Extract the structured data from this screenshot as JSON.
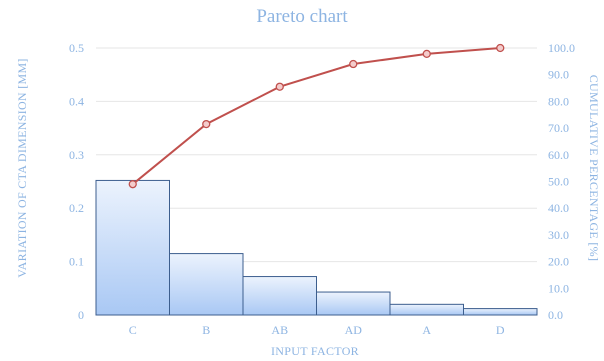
{
  "chart_data": {
    "type": "bar",
    "title": "Pareto chart",
    "xlabel": "INPUT FACTOR",
    "ylabel": "VARIATION OF CTA DIMENSION [MM]",
    "y2label": "CUMULATIVE PERCENTAGE [%]",
    "categories": [
      "C",
      "B",
      "AB",
      "AD",
      "A",
      "D"
    ],
    "values": [
      0.252,
      0.115,
      0.072,
      0.043,
      0.02,
      0.012
    ],
    "cumulative_percent": [
      49.0,
      71.5,
      85.5,
      94.0,
      97.8,
      100.0
    ],
    "ylim": [
      0,
      0.5
    ],
    "y_ticks": [
      "0",
      "0.1",
      "0.2",
      "0.3",
      "0.4",
      "0.5"
    ],
    "y2lim": [
      0,
      100
    ],
    "y2_ticks": [
      "0.0",
      "10.0",
      "20.0",
      "30.0",
      "40.0",
      "50.0",
      "60.0",
      "70.0",
      "80.0",
      "90.0",
      "100.0"
    ],
    "grid": true,
    "legend": "none",
    "colors": {
      "title": "#8db4e2",
      "axis_text": "#8db4e2",
      "grid": "#e6e6e6",
      "bar_top": "#ecf3fd",
      "bar_bottom": "#a9c8f4",
      "bar_edge": "#3c5e8e",
      "line": "#c0504d",
      "marker_fill": "#f4cccc"
    }
  }
}
